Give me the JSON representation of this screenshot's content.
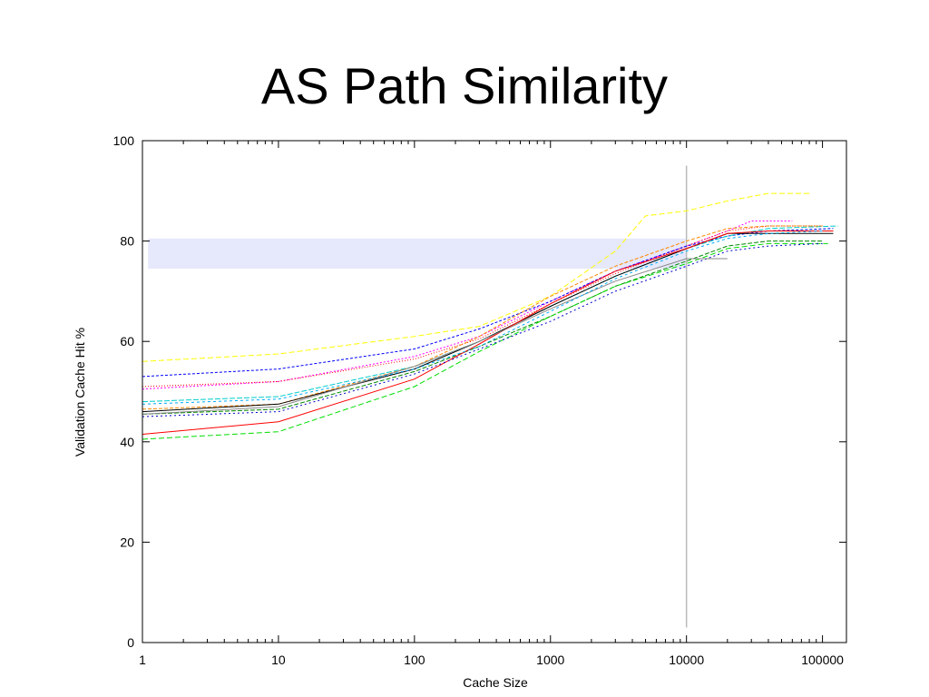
{
  "slide": {
    "title": "AS Path Similarity"
  },
  "chart_data": {
    "type": "line",
    "title": "",
    "xlabel": "Cache Size",
    "ylabel": "Validation Cache Hit %",
    "x_scale": "log",
    "xlim": [
      1,
      150000
    ],
    "ylim": [
      0,
      100
    ],
    "xticks": [
      1,
      10,
      100,
      1000,
      10000,
      100000
    ],
    "xtick_labels": [
      "1",
      "10",
      "100",
      "1000",
      "10000",
      "100000"
    ],
    "yticks": [
      0,
      20,
      40,
      60,
      80,
      100
    ],
    "ytick_labels": [
      "0",
      "20",
      "40",
      "60",
      "80",
      "100"
    ],
    "grid": false,
    "legend": "none",
    "band": {
      "x_from": 1.1,
      "x_to": 10000,
      "y_from": 74.5,
      "y_to": 80.5,
      "color": "#e6e8fb"
    },
    "reference_line": {
      "x": 10000,
      "y_from": 3,
      "y_to": 95,
      "color": "#bbbbbb"
    },
    "series": [
      {
        "color": "#ffff00",
        "dash": "6,3",
        "points": [
          [
            1,
            56
          ],
          [
            10,
            57.5
          ],
          [
            100,
            61
          ],
          [
            300,
            63
          ],
          [
            1000,
            69
          ],
          [
            3000,
            78
          ],
          [
            5000,
            85
          ],
          [
            10000,
            86
          ],
          [
            20000,
            88
          ],
          [
            40000,
            89.5
          ],
          [
            80000,
            89.5
          ]
        ]
      },
      {
        "color": "#ff00ff",
        "dash": "2,2",
        "points": [
          [
            1,
            50.5
          ],
          [
            10,
            52
          ],
          [
            100,
            57
          ],
          [
            300,
            61
          ],
          [
            1000,
            68
          ],
          [
            3000,
            74
          ],
          [
            10000,
            79
          ],
          [
            20000,
            82
          ],
          [
            30000,
            84
          ],
          [
            60000,
            84
          ]
        ]
      },
      {
        "color": "#ff0000",
        "dash": "1,2",
        "points": [
          [
            1,
            51
          ],
          [
            10,
            52
          ],
          [
            100,
            56.5
          ],
          [
            300,
            60.5
          ],
          [
            1000,
            67.5
          ],
          [
            3000,
            73.5
          ],
          [
            10000,
            79
          ],
          [
            20000,
            82
          ],
          [
            40000,
            83
          ],
          [
            100000,
            83
          ]
        ]
      },
      {
        "color": "#0000ff",
        "dash": "3,2",
        "points": [
          [
            1,
            53
          ],
          [
            10,
            54.5
          ],
          [
            100,
            58.5
          ],
          [
            300,
            62.5
          ],
          [
            1000,
            68
          ],
          [
            3000,
            74
          ],
          [
            10000,
            79
          ],
          [
            20000,
            81
          ],
          [
            40000,
            82
          ],
          [
            120000,
            82.5
          ]
        ]
      },
      {
        "color": "#00cccc",
        "dash": "6,2",
        "points": [
          [
            1,
            48
          ],
          [
            10,
            49
          ],
          [
            100,
            55
          ],
          [
            300,
            60
          ],
          [
            1000,
            67
          ],
          [
            3000,
            73
          ],
          [
            10000,
            78.5
          ],
          [
            20000,
            81
          ],
          [
            40000,
            82.5
          ],
          [
            130000,
            83
          ]
        ]
      },
      {
        "color": "#ff8800",
        "dash": "4,2",
        "points": [
          [
            1,
            46.5
          ],
          [
            10,
            47.5
          ],
          [
            100,
            55
          ],
          [
            300,
            61
          ],
          [
            1000,
            69
          ],
          [
            3000,
            75
          ],
          [
            10000,
            80
          ],
          [
            20000,
            82.5
          ],
          [
            40000,
            83
          ],
          [
            100000,
            83
          ]
        ]
      },
      {
        "color": "#008800",
        "dash": "5,2",
        "points": [
          [
            1,
            45.5
          ],
          [
            10,
            46.5
          ],
          [
            100,
            54
          ],
          [
            300,
            59
          ],
          [
            1000,
            65
          ],
          [
            3000,
            71
          ],
          [
            10000,
            76
          ],
          [
            20000,
            79
          ],
          [
            40000,
            80
          ],
          [
            100000,
            80
          ]
        ]
      },
      {
        "color": "#000000",
        "dash": "",
        "points": [
          [
            1,
            46
          ],
          [
            10,
            47.5
          ],
          [
            100,
            54.5
          ],
          [
            300,
            60
          ],
          [
            1000,
            67
          ],
          [
            3000,
            73
          ],
          [
            10000,
            78.5
          ],
          [
            20000,
            81.5
          ],
          [
            40000,
            81.5
          ],
          [
            120000,
            81.5
          ]
        ]
      },
      {
        "color": "#ff0000",
        "dash": "",
        "points": [
          [
            1,
            41.5
          ],
          [
            10,
            44
          ],
          [
            100,
            52.5
          ],
          [
            300,
            59.5
          ],
          [
            1000,
            67.5
          ],
          [
            3000,
            74
          ],
          [
            10000,
            78.5
          ],
          [
            20000,
            81.5
          ],
          [
            40000,
            82
          ],
          [
            120000,
            82
          ]
        ]
      },
      {
        "color": "#00dd00",
        "dash": "6,3",
        "points": [
          [
            1,
            40.5
          ],
          [
            10,
            42
          ],
          [
            100,
            51
          ],
          [
            300,
            58
          ],
          [
            1000,
            65
          ],
          [
            3000,
            71
          ],
          [
            10000,
            75.5
          ],
          [
            20000,
            78.5
          ],
          [
            40000,
            79.5
          ],
          [
            110000,
            79.5
          ]
        ]
      },
      {
        "color": "#0000cc",
        "dash": "2,3",
        "points": [
          [
            1,
            45
          ],
          [
            10,
            46
          ],
          [
            100,
            53.5
          ],
          [
            300,
            58.5
          ],
          [
            1000,
            64
          ],
          [
            3000,
            70
          ],
          [
            10000,
            75
          ],
          [
            20000,
            78
          ],
          [
            40000,
            79
          ],
          [
            100000,
            79.5
          ]
        ]
      },
      {
        "color": "#888888",
        "dash": "",
        "points": [
          [
            1,
            45.5
          ],
          [
            10,
            47
          ],
          [
            100,
            55
          ],
          [
            300,
            60
          ],
          [
            1000,
            66.5
          ],
          [
            3000,
            72
          ],
          [
            10000,
            76.5
          ],
          [
            20000,
            76.5
          ]
        ]
      },
      {
        "color": "#00aaff",
        "dash": "3,3",
        "points": [
          [
            1,
            47.5
          ],
          [
            10,
            48.5
          ],
          [
            100,
            54.5
          ],
          [
            300,
            59
          ],
          [
            1000,
            66
          ],
          [
            3000,
            72.5
          ],
          [
            10000,
            78
          ],
          [
            20000,
            80.5
          ],
          [
            40000,
            81.5
          ],
          [
            100000,
            82
          ]
        ]
      }
    ]
  }
}
